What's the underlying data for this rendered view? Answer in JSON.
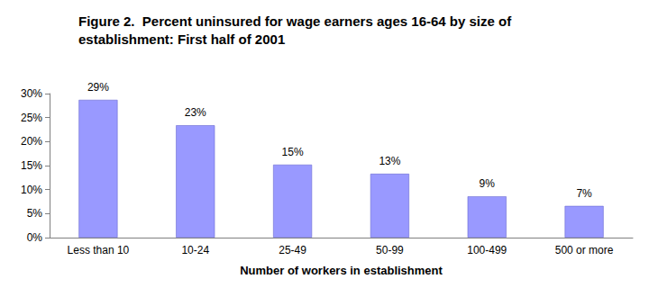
{
  "chart_data": {
    "type": "bar",
    "title": "Figure 2.  Percent uninsured for wage earners ages 16-64 by size of establishment: First half of 2001",
    "x_label": "Number of workers in establishment",
    "categories": [
      "Less than 10",
      "10-24",
      "25-49",
      "50-99",
      "100-499",
      "500 or more"
    ],
    "values": [
      28.7,
      23.4,
      15.2,
      13.3,
      8.6,
      6.6
    ],
    "value_labels": [
      "29%",
      "23%",
      "15%",
      "13%",
      "9%",
      "7%"
    ],
    "color": "#9999ff",
    "ylim": [
      0,
      30
    ],
    "yticks": [
      {
        "value": 0,
        "label": "0%"
      },
      {
        "value": 5,
        "label": "5%"
      },
      {
        "value": 10,
        "label": "10%"
      },
      {
        "value": 15,
        "label": "15%"
      },
      {
        "value": 20,
        "label": "20%"
      },
      {
        "value": 25,
        "label": "25%"
      },
      {
        "value": 30,
        "label": "30%"
      }
    ],
    "grid": false,
    "data_labels": true
  }
}
